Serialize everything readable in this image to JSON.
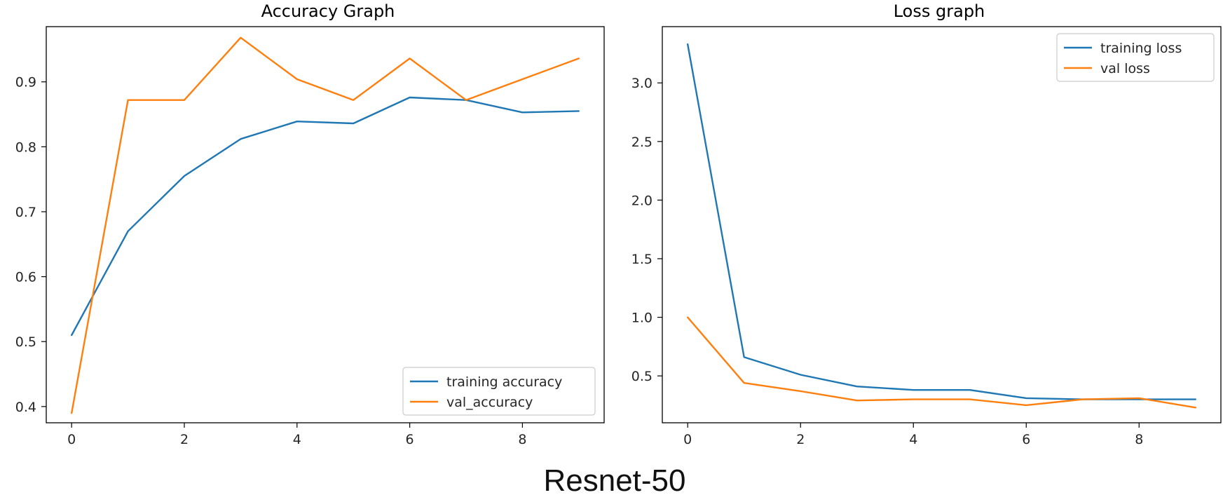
{
  "figure": {
    "caption": "Resnet-50"
  },
  "colors": {
    "training": "#1f77b4",
    "validation": "#ff7f0e"
  },
  "chart_data": [
    {
      "type": "line",
      "title": "Accuracy Graph",
      "xlabel": "",
      "ylabel": "",
      "x": [
        0,
        1,
        2,
        3,
        4,
        5,
        6,
        7,
        8,
        9
      ],
      "xlim": [
        -0.45,
        9.45
      ],
      "ylim": [
        0.375,
        0.985
      ],
      "xticks": [
        0,
        2,
        4,
        6,
        8
      ],
      "yticks": [
        0.4,
        0.5,
        0.6,
        0.7,
        0.8,
        0.9
      ],
      "ytick_labels": [
        "0.4",
        "0.5",
        "0.6",
        "0.7",
        "0.8",
        "0.9"
      ],
      "grid": false,
      "legend_position": "lower right",
      "series": [
        {
          "name": "training accuracy",
          "color": "#1f77b4",
          "values": [
            0.51,
            0.67,
            0.755,
            0.812,
            0.839,
            0.836,
            0.876,
            0.872,
            0.853,
            0.855
          ]
        },
        {
          "name": "val_accuracy",
          "color": "#ff7f0e",
          "values": [
            0.39,
            0.872,
            0.872,
            0.968,
            0.904,
            0.872,
            0.936,
            0.872,
            0.904,
            0.936
          ]
        }
      ]
    },
    {
      "type": "line",
      "title": "Loss graph",
      "xlabel": "",
      "ylabel": "",
      "x": [
        0,
        1,
        2,
        3,
        4,
        5,
        6,
        7,
        8,
        9
      ],
      "xlim": [
        -0.45,
        9.45
      ],
      "ylim": [
        0.1,
        3.48
      ],
      "xticks": [
        0,
        2,
        4,
        6,
        8
      ],
      "yticks": [
        0.5,
        1.0,
        1.5,
        2.0,
        2.5,
        3.0
      ],
      "ytick_labels": [
        "0.5",
        "1.0",
        "1.5",
        "2.0",
        "2.5",
        "3.0"
      ],
      "grid": false,
      "legend_position": "upper right",
      "series": [
        {
          "name": "training loss",
          "color": "#1f77b4",
          "values": [
            3.33,
            0.66,
            0.51,
            0.41,
            0.38,
            0.38,
            0.31,
            0.3,
            0.3,
            0.3
          ]
        },
        {
          "name": "val loss",
          "color": "#ff7f0e",
          "values": [
            1.0,
            0.44,
            0.37,
            0.29,
            0.3,
            0.3,
            0.25,
            0.3,
            0.31,
            0.23
          ]
        }
      ]
    }
  ]
}
